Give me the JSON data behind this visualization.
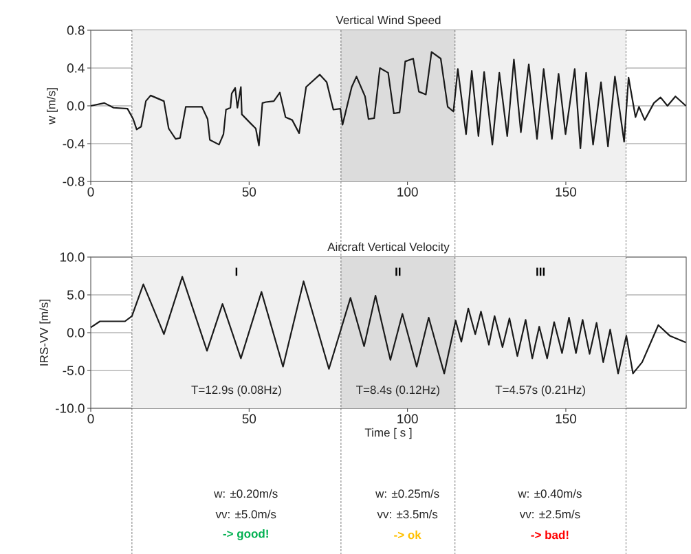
{
  "chart_data": [
    {
      "type": "line",
      "title": "Vertical Wind Speed",
      "ylabel": "w [m/s]",
      "color": "#1a1a1a",
      "x": [
        0,
        4.3,
        7.2,
        11.6,
        13.4,
        14.5,
        15.9,
        17.4,
        18.9,
        23.1,
        24.6,
        26.8,
        28.2,
        30,
        35.1,
        36.9,
        37.6,
        40.5,
        41.9,
        42.7,
        44.1,
        44.5,
        45.6,
        46.3,
        47.4,
        47.7,
        50.6,
        52.1,
        53.1,
        54.2,
        55.3,
        57.8,
        59.7,
        61.5,
        63.6,
        65.8,
        68,
        72.3,
        74.5,
        76.6,
        78.8,
        79.5,
        80.3,
        82.4,
        83.9,
        86.6,
        87.7,
        89.5,
        91.3,
        93.9,
        95.7,
        97.5,
        99.3,
        101.8,
        103.6,
        105.8,
        107.6,
        110.5,
        112.7,
        114.5,
        115.9,
        118.5,
        120.3,
        122.4,
        124.2,
        126.8,
        129,
        131.5,
        133.6,
        135.8,
        138.3,
        140.9,
        143,
        145.6,
        147.7,
        149.9,
        152.8,
        154.6,
        156.4,
        158.6,
        161.1,
        163.3,
        165.5,
        168.4,
        169.8,
        172,
        173.1,
        174.9,
        177.8,
        179.9,
        182.1,
        184.6,
        187.9
      ],
      "values": [
        0,
        0.03,
        -0.02,
        -0.03,
        -0.14,
        -0.25,
        -0.22,
        0.05,
        0.11,
        0.05,
        -0.24,
        -0.35,
        -0.34,
        -0.01,
        -0.01,
        -0.14,
        -0.36,
        -0.41,
        -0.3,
        -0.04,
        -0.02,
        0.13,
        0.19,
        -0.02,
        0.2,
        -0.09,
        -0.19,
        -0.24,
        -0.42,
        0.03,
        0.04,
        0.05,
        0.14,
        -0.12,
        -0.15,
        -0.29,
        0.2,
        0.33,
        0.25,
        -0.04,
        -0.03,
        -0.2,
        -0.09,
        0.2,
        0.31,
        0.1,
        -0.14,
        -0.13,
        0.4,
        0.35,
        -0.08,
        -0.07,
        0.47,
        0.5,
        0.15,
        0.12,
        0.57,
        0.5,
        -0.01,
        -0.06,
        0.39,
        -0.3,
        0.37,
        -0.32,
        0.36,
        -0.41,
        0.35,
        -0.32,
        0.49,
        -0.28,
        0.44,
        -0.35,
        0.39,
        -0.35,
        0.34,
        -0.3,
        0.39,
        -0.45,
        0.35,
        -0.41,
        0.25,
        -0.43,
        0.31,
        -0.38,
        0.3,
        -0.12,
        -0.01,
        -0.15,
        0.03,
        0.09,
        0,
        0.1,
        0
      ],
      "xlim": [
        0,
        188
      ],
      "xticks": [
        0,
        50,
        100,
        150
      ],
      "ylim": [
        -0.8,
        0.8
      ],
      "yticks": [
        {
          "value": -0.8,
          "label": "-0.8"
        },
        {
          "value": -0.4,
          "label": "-0.4"
        },
        {
          "value": 0,
          "label": "0.0"
        },
        {
          "value": 0.4,
          "label": "0.4"
        },
        {
          "value": 0.8,
          "label": "0.8"
        }
      ],
      "grid": "y",
      "bands": [
        {
          "axis": "x",
          "from": 13,
          "to": 79,
          "color": "#f0f0f0"
        },
        {
          "axis": "x",
          "from": 79,
          "to": 115,
          "color": "#dcdcdc"
        },
        {
          "axis": "x",
          "from": 115,
          "to": 169,
          "color": "#f0f0f0"
        }
      ],
      "ref_lines": [
        {
          "axis": "x",
          "value": 13,
          "color": "#404040",
          "line_style": "dashed"
        },
        {
          "axis": "x",
          "value": 79,
          "color": "#404040",
          "line_style": "dashed"
        },
        {
          "axis": "x",
          "value": 115,
          "color": "#404040",
          "line_style": "dashed"
        },
        {
          "axis": "x",
          "value": 169,
          "color": "#404040",
          "line_style": "dashed"
        }
      ]
    },
    {
      "type": "line",
      "title": "Aircraft Vertical Velocity",
      "xlabel": "Time [ s ]",
      "ylabel": "IRS-VV [m/s]",
      "color": "#1a1a1a",
      "x": [
        0,
        2.9,
        10.8,
        13,
        16.6,
        23.1,
        28.9,
        36.7,
        41.6,
        47.4,
        53.9,
        60.7,
        67.2,
        75.2,
        82,
        86.3,
        89.9,
        94.6,
        98.4,
        102.9,
        106.7,
        111.6,
        115.2,
        117,
        119.2,
        121.4,
        123.2,
        125.7,
        127.5,
        130,
        132.2,
        134.7,
        137.3,
        139.4,
        141.6,
        144.1,
        146.3,
        148.8,
        151,
        153.2,
        155.3,
        157.5,
        159.7,
        161.8,
        164,
        166.5,
        169.1,
        171.2,
        174.1,
        179.2,
        182.8,
        187.9
      ],
      "values": [
        0.7,
        1.5,
        1.5,
        2.2,
        6.4,
        -0.2,
        7.4,
        -2.4,
        3.8,
        -3.4,
        5.4,
        -4.5,
        6.8,
        -4.8,
        4.6,
        -1.8,
        4.9,
        -3.6,
        2.5,
        -4.5,
        2.0,
        -5.4,
        1.6,
        -1.2,
        3.2,
        -0.2,
        2.8,
        -1.6,
        2.2,
        -1.9,
        1.9,
        -3.1,
        1.7,
        -3.4,
        0.8,
        -3.4,
        1.4,
        -2.7,
        2,
        -2.7,
        1.7,
        -2.8,
        1.3,
        -3.9,
        0.4,
        -5.4,
        -0.4,
        -5.4,
        -3.9,
        1,
        -0.4,
        -1.3
      ],
      "xlim": [
        0,
        188
      ],
      "xticks": [
        0,
        50,
        100,
        150
      ],
      "ylim": [
        -10,
        10
      ],
      "yticks": [
        {
          "value": -10,
          "label": "-10.0"
        },
        {
          "value": -5,
          "label": "-5.0"
        },
        {
          "value": 0,
          "label": "0.0"
        },
        {
          "value": 5,
          "label": "5.0"
        },
        {
          "value": 10,
          "label": "10.0"
        }
      ],
      "grid": "y",
      "bands": [
        {
          "axis": "x",
          "from": 13,
          "to": 79,
          "color": "#f0f0f0",
          "label": "I"
        },
        {
          "axis": "x",
          "from": 79,
          "to": 115,
          "color": "#dcdcdc",
          "label": "II"
        },
        {
          "axis": "x",
          "from": 115,
          "to": 169,
          "color": "#f0f0f0",
          "label": "III"
        }
      ],
      "ref_lines": [
        {
          "axis": "x",
          "value": 13,
          "color": "#404040",
          "line_style": "dashed"
        },
        {
          "axis": "x",
          "value": 79,
          "color": "#404040",
          "line_style": "dashed"
        },
        {
          "axis": "x",
          "value": 115,
          "color": "#404040",
          "line_style": "dashed"
        },
        {
          "axis": "x",
          "value": 169,
          "color": "#404040",
          "line_style": "dashed"
        }
      ],
      "annotations": [
        "T=12.9s (0.08Hz)",
        "T=8.4s (0.12Hz)",
        "T=4.57s (0.21Hz)",
        "w: ±0.20m/s",
        "vv: ±5.0m/s",
        "-> good!",
        "w: ±0.25m/s",
        "vv: ±3.5m/s",
        "-> ok",
        "w: ±0.40m/s",
        "vv: ±2.5m/s",
        "-> bad!"
      ]
    }
  ]
}
